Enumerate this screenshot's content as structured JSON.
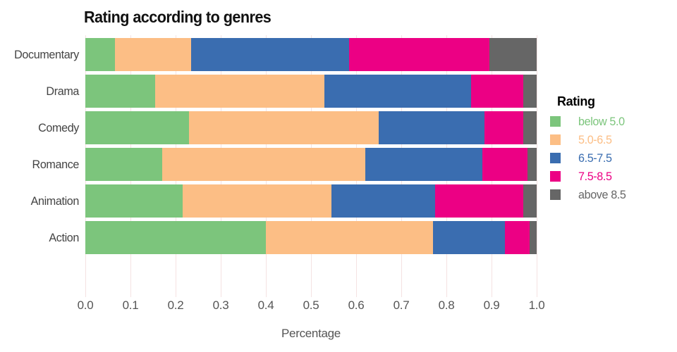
{
  "chart": {
    "title": "Rating according to genres",
    "xlabel": "Percentage",
    "x_ticks": [
      "0.0",
      "0.1",
      "0.2",
      "0.3",
      "0.4",
      "0.5",
      "0.6",
      "0.7",
      "0.8",
      "0.9",
      "1.0"
    ]
  },
  "legend": {
    "title": "Rating"
  },
  "chart_data": {
    "type": "bar",
    "orientation": "horizontal",
    "stacked": true,
    "title": "Rating according to genres",
    "xlabel": "Percentage",
    "ylabel": "",
    "xlim": [
      0,
      1.0
    ],
    "grid": true,
    "gridline_color": "#f5e2e2",
    "legend_position": "right",
    "categories": [
      "Documentary",
      "Drama",
      "Comedy",
      "Romance",
      "Animation",
      "Action"
    ],
    "series": [
      {
        "name": "below 5.0",
        "color": "#7CC57C",
        "values": [
          0.065,
          0.155,
          0.23,
          0.17,
          0.215,
          0.4
        ]
      },
      {
        "name": "5.0-6.5",
        "color": "#FCBE85",
        "values": [
          0.17,
          0.375,
          0.42,
          0.45,
          0.33,
          0.37
        ]
      },
      {
        "name": "6.5-7.5",
        "color": "#3A6DB0",
        "values": [
          0.35,
          0.325,
          0.235,
          0.26,
          0.23,
          0.16
        ]
      },
      {
        "name": "7.5-8.5",
        "color": "#EC0084",
        "values": [
          0.31,
          0.115,
          0.085,
          0.1,
          0.195,
          0.055
        ]
      },
      {
        "name": "above 8.5",
        "color": "#666666",
        "values": [
          0.105,
          0.03,
          0.03,
          0.02,
          0.03,
          0.015
        ]
      }
    ]
  },
  "colors": {
    "axis_text": "#555555",
    "category_text": "#444444",
    "title_text": "#111111"
  }
}
